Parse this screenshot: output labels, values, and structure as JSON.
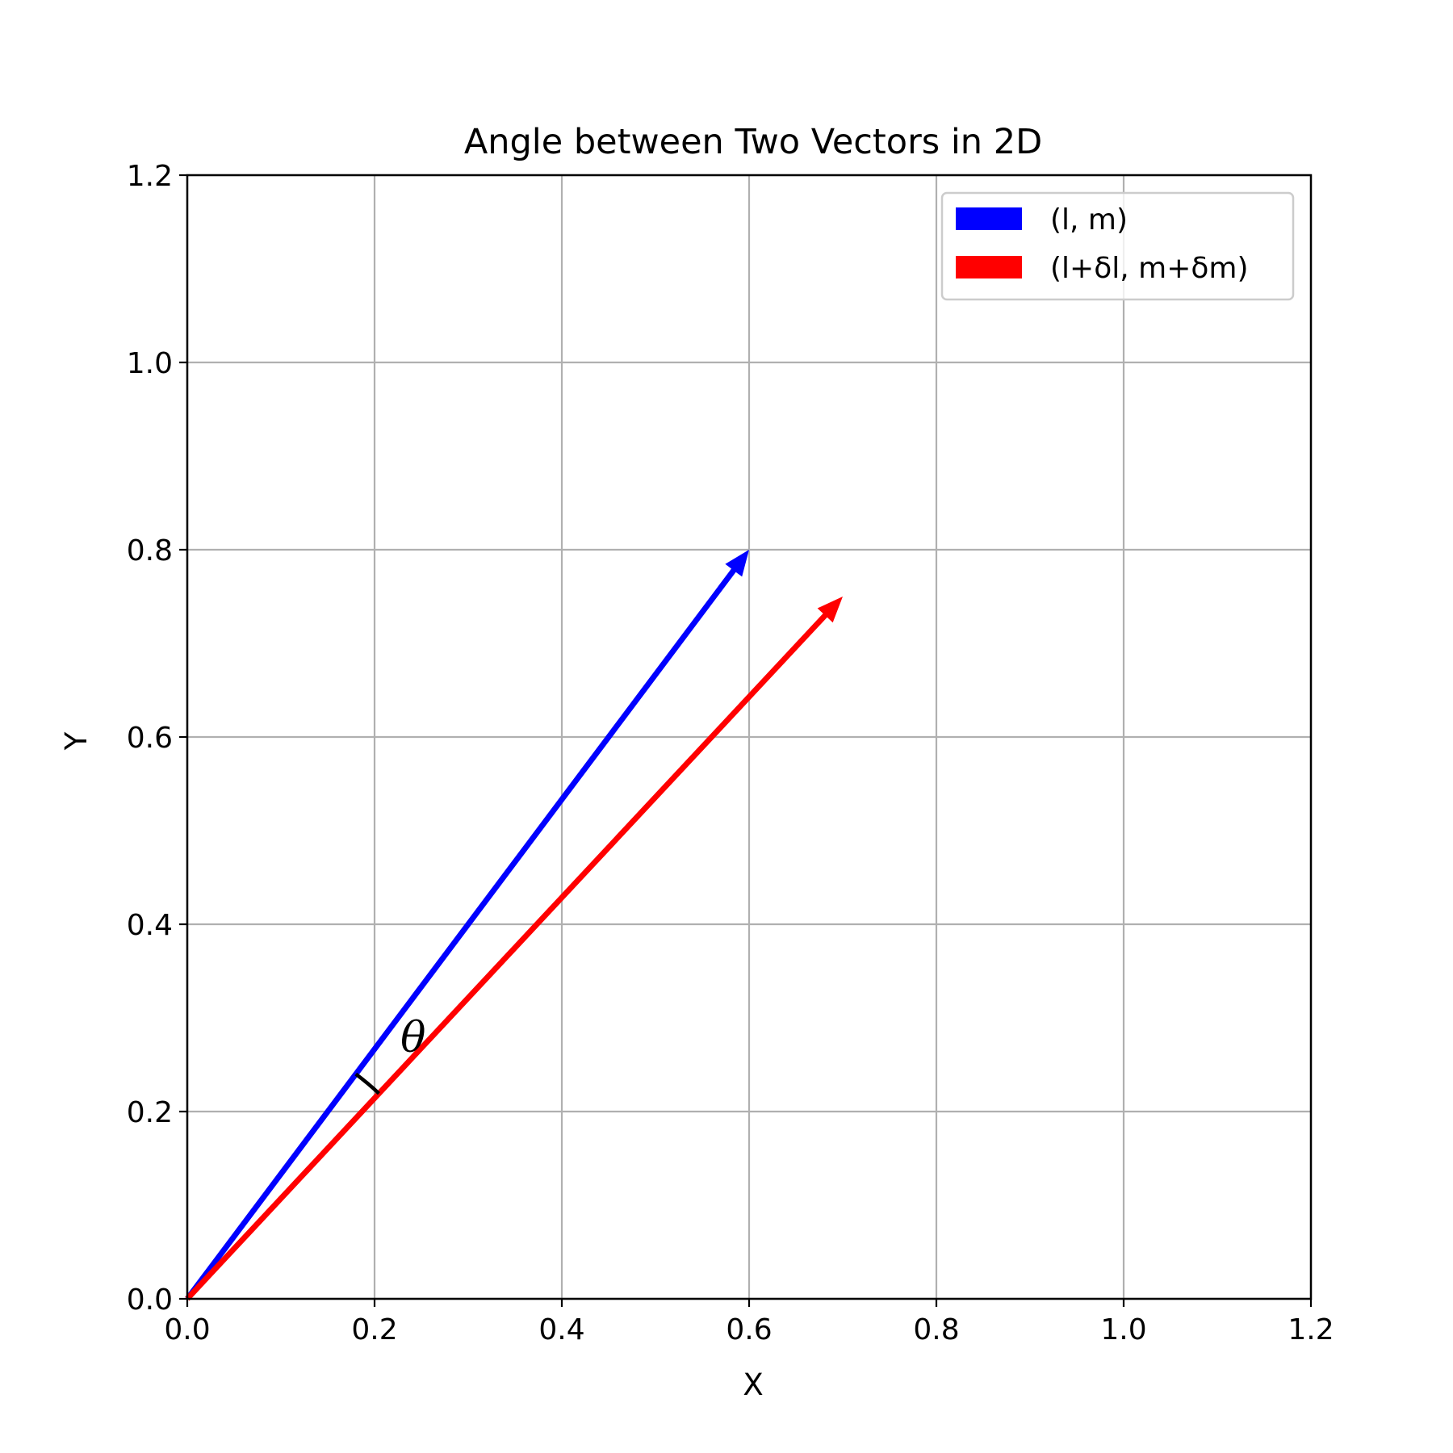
{
  "chart_data": {
    "type": "vector",
    "title": "Angle between Two Vectors in 2D",
    "xlabel": "X",
    "ylabel": "Y",
    "xlim": [
      0,
      1.2
    ],
    "ylim": [
      0,
      1.2
    ],
    "grid": true,
    "xticks": [
      "0.0",
      "0.2",
      "0.4",
      "0.6",
      "0.8",
      "1.0",
      "1.2"
    ],
    "yticks": [
      "0.0",
      "0.2",
      "0.4",
      "0.6",
      "0.8",
      "1.0",
      "1.2"
    ],
    "legend_position": "top-right",
    "vectors": [
      {
        "name": "(l, m)",
        "origin": [
          0,
          0
        ],
        "tip": [
          0.6,
          0.8
        ],
        "color": "#0000ff"
      },
      {
        "name": "(l+δl, m+δm)",
        "origin": [
          0,
          0
        ],
        "tip": [
          0.7,
          0.75
        ],
        "color": "#ff0000"
      }
    ],
    "angle_annotation": {
      "label": "θ",
      "radius": 0.3
    }
  }
}
